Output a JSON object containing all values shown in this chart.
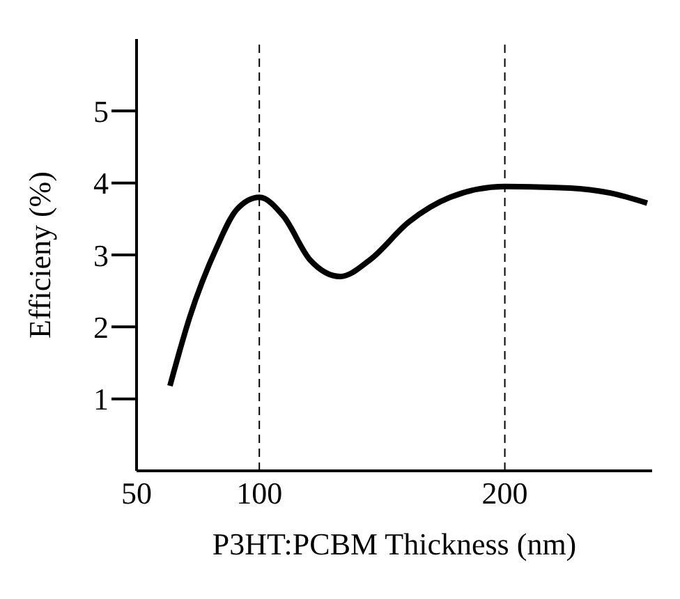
{
  "chart_data": {
    "type": "line",
    "xlabel": "P3HT:PCBM Thickness (nm)",
    "ylabel": "Efficieny  (%)",
    "x": [
      63.6,
      71.7,
      82.6,
      90.8,
      100,
      109.8,
      120.7,
      133,
      145,
      161,
      177.7,
      200,
      226.6,
      243,
      258
    ],
    "series": [
      {
        "color": "#000000",
        "values": [
          1.18,
          2.14,
          3.1,
          3.63,
          3.8,
          3.54,
          2.93,
          2.7,
          2.93,
          3.46,
          3.8,
          3.95,
          3.93,
          3.86,
          3.72
        ]
      }
    ],
    "xlim": [
      50,
      260
    ],
    "xticks": [
      50,
      100,
      200
    ],
    "ylim": [
      0,
      6
    ],
    "yticks": [
      1,
      2,
      3,
      4,
      5
    ],
    "ref_lines": [
      {
        "axis": "x",
        "value": 100,
        "line_style": "dashed",
        "color": "#000000"
      },
      {
        "axis": "x",
        "value": 200,
        "line_style": "dashed",
        "color": "#000000"
      }
    ],
    "grid": false,
    "legend": false,
    "marker": "none",
    "line_style": "solid"
  }
}
